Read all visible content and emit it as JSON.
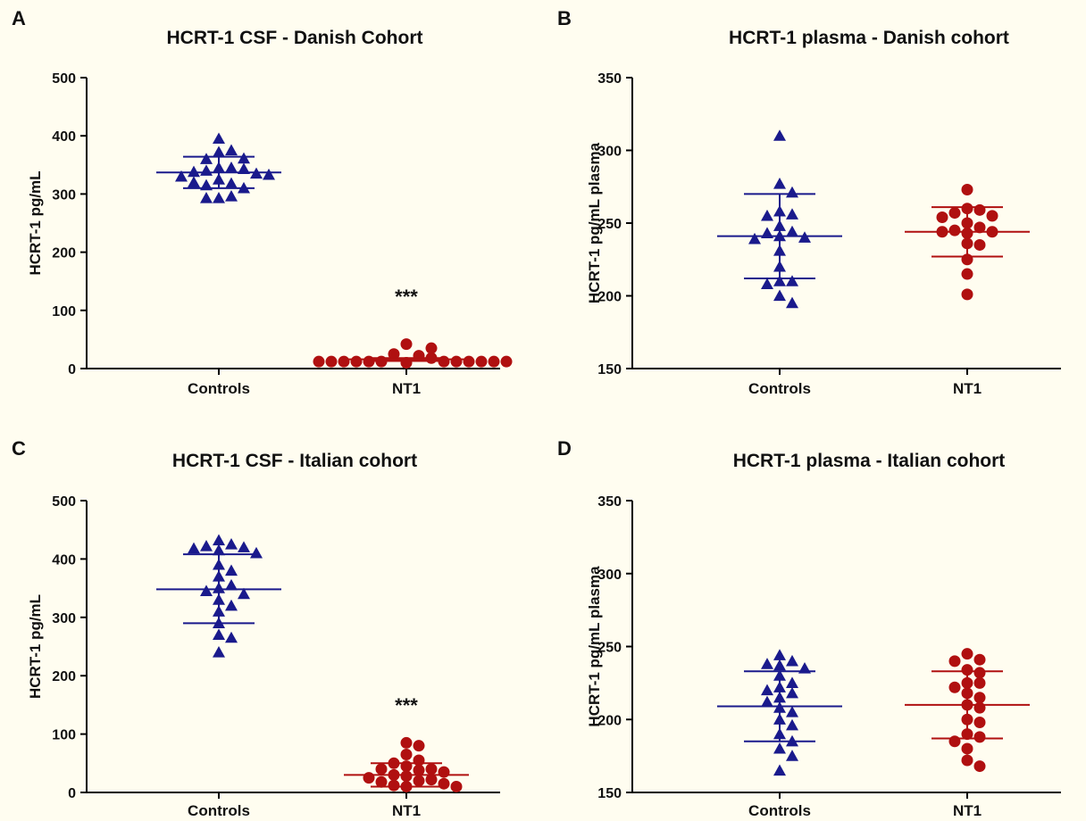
{
  "chart_data": [
    {
      "panel": "A",
      "type": "scatter",
      "title": "HCRT-1 CSF - Danish Cohort",
      "xlabel": "",
      "ylabel": "HCRT-1 pg/mL",
      "categories": [
        "Controls",
        "NT1"
      ],
      "ylim": [
        0,
        500
      ],
      "yticks": [
        0,
        100,
        200,
        300,
        400,
        500
      ],
      "annotation": "***",
      "series": [
        {
          "category": "Controls",
          "marker": "triangle",
          "color": "#1a1a8c",
          "mean": 337,
          "sd_high": 364,
          "sd_low": 310,
          "values": [
            345,
            345,
            340,
            343,
            372,
            395,
            375,
            360,
            361,
            338,
            335,
            330,
            325,
            333,
            318,
            315,
            310,
            293,
            296,
            293,
            320
          ]
        },
        {
          "category": "NT1",
          "marker": "circle",
          "color": "#b01010",
          "mean": 16,
          "sd_high": 18,
          "sd_low": 13,
          "values": [
            10,
            22,
            25,
            18,
            12,
            12,
            12,
            12,
            12,
            12,
            12,
            12,
            12,
            42,
            12,
            12,
            35,
            12
          ]
        }
      ]
    },
    {
      "panel": "B",
      "type": "scatter",
      "title": "HCRT-1 plasma - Danish cohort",
      "xlabel": "",
      "ylabel": "HCRT-1 pg/mL plasma",
      "categories": [
        "Controls",
        "NT1"
      ],
      "ylim": [
        150,
        350
      ],
      "yticks": [
        150,
        200,
        250,
        300,
        350
      ],
      "annotation": "",
      "series": [
        {
          "category": "Controls",
          "marker": "triangle",
          "color": "#1a1a8c",
          "mean": 241,
          "sd_high": 270,
          "sd_low": 212,
          "values": [
            310,
            277,
            271,
            258,
            256,
            255,
            248,
            244,
            243,
            241,
            240,
            239,
            231,
            220,
            210,
            210,
            208,
            200,
            195
          ]
        },
        {
          "category": "NT1",
          "marker": "circle",
          "color": "#b01010",
          "mean": 244,
          "sd_high": 261,
          "sd_low": 227,
          "values": [
            273,
            260,
            259,
            257,
            255,
            254,
            250,
            247,
            245,
            244,
            244,
            243,
            236,
            235,
            225,
            215,
            201
          ]
        }
      ]
    },
    {
      "panel": "C",
      "type": "scatter",
      "title": "HCRT-1 CSF - Italian cohort",
      "xlabel": "",
      "ylabel": "HCRT-1 pg/mL",
      "categories": [
        "Controls",
        "NT1"
      ],
      "ylim": [
        0,
        500
      ],
      "yticks": [
        0,
        100,
        200,
        300,
        400,
        500
      ],
      "annotation": "***",
      "series": [
        {
          "category": "Controls",
          "marker": "triangle",
          "color": "#1a1a8c",
          "mean": 348,
          "sd_high": 408,
          "sd_low": 290,
          "values": [
            432,
            425,
            422,
            420,
            418,
            415,
            410,
            390,
            380,
            370,
            355,
            350,
            345,
            340,
            330,
            320,
            310,
            290,
            270,
            265,
            240
          ]
        },
        {
          "category": "NT1",
          "marker": "circle",
          "color": "#b01010",
          "mean": 30,
          "sd_high": 50,
          "sd_low": 10,
          "values": [
            85,
            80,
            65,
            55,
            50,
            45,
            40,
            40,
            38,
            35,
            30,
            28,
            25,
            22,
            20,
            18,
            15,
            12,
            10,
            10
          ]
        }
      ]
    },
    {
      "panel": "D",
      "type": "scatter",
      "title": "HCRT-1 plasma - Italian cohort",
      "xlabel": "",
      "ylabel": "HCRT-1 pg/mL plasma",
      "categories": [
        "Controls",
        "NT1"
      ],
      "ylim": [
        150,
        350
      ],
      "yticks": [
        150,
        200,
        250,
        300,
        350
      ],
      "annotation": "",
      "series": [
        {
          "category": "Controls",
          "marker": "triangle",
          "color": "#1a1a8c",
          "mean": 209,
          "sd_high": 233,
          "sd_low": 185,
          "values": [
            244,
            240,
            238,
            237,
            235,
            230,
            225,
            222,
            220,
            218,
            215,
            212,
            208,
            205,
            200,
            196,
            190,
            185,
            180,
            175,
            165
          ]
        },
        {
          "category": "NT1",
          "marker": "circle",
          "color": "#b01010",
          "mean": 210,
          "sd_high": 233,
          "sd_low": 187,
          "values": [
            245,
            241,
            240,
            234,
            232,
            225,
            225,
            222,
            218,
            215,
            210,
            208,
            200,
            198,
            190,
            188,
            185,
            180,
            172,
            168
          ]
        }
      ]
    }
  ]
}
